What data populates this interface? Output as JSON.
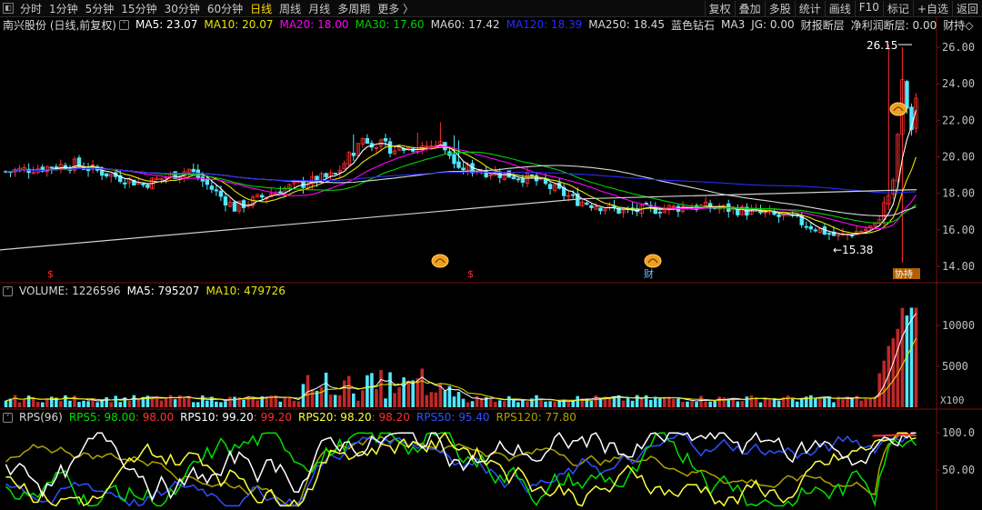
{
  "toolbar": {
    "tabs": [
      {
        "label": "分时",
        "active": false
      },
      {
        "label": "1分钟",
        "active": false
      },
      {
        "label": "5分钟",
        "active": false
      },
      {
        "label": "15分钟",
        "active": false
      },
      {
        "label": "30分钟",
        "active": false
      },
      {
        "label": "60分钟",
        "active": false
      },
      {
        "label": "日线",
        "active": true
      },
      {
        "label": "周线",
        "active": false
      },
      {
        "label": "月线",
        "active": false
      },
      {
        "label": "多周期",
        "active": false
      },
      {
        "label": "更多 〉",
        "active": false
      }
    ],
    "right_tabs": [
      "复权",
      "叠加",
      "多股",
      "统计",
      "画线",
      "F10",
      "标记",
      "+自选",
      "返回"
    ]
  },
  "kline": {
    "legend": {
      "stock": "南兴股份 (日线,前复权)",
      "ma5": "MA5: 23.07",
      "ma10": "MA10: 20.07",
      "ma20": "MA20: 18.00",
      "ma30": "MA30: 17.60",
      "ma60": "MA60: 17.42",
      "ma120": "MA120: 18.39",
      "ma250": "MA250: 18.45",
      "blue_diamond": "蓝色钻石",
      "ma3": "MA3",
      "jg": "JG: 0.00",
      "report": "财报断层",
      "profit": "净利润断层: 0.00",
      "tail": "财持◇"
    },
    "colors": {
      "ma5": "#ffffff",
      "ma10": "#e8e800",
      "ma20": "#ff00ff",
      "ma30": "#00d000",
      "ma60": "#d8d8d8",
      "ma120": "#2a2aff",
      "ma250": "#d0d0d0",
      "up": "#ff3030",
      "down": "#50e8ff"
    },
    "y_ticks": [
      "26.00",
      "24.00",
      "22.00",
      "20.00",
      "18.00",
      "16.00",
      "14.00"
    ],
    "y_range": [
      13.3,
      26.8
    ],
    "high_label": "26.15",
    "low_label": "←15.38",
    "markers": {
      "s1": "$",
      "s2": "$",
      "cai": "财",
      "tags": "协",
      "tags2": "持"
    }
  },
  "volume": {
    "legend": {
      "title": "VOLUME: 1226596",
      "ma5": "MA5: 795207",
      "ma10": "MA10: 479726"
    },
    "y_ticks": [
      "10000",
      "5000"
    ],
    "unit": "X100"
  },
  "rps": {
    "legend": {
      "title": "RPS(96)",
      "rps5": "RPS5: 98.00",
      "rps5b": ": 98.00",
      "rps10": "RPS10: 99.20",
      "rps10b": ": 99.20",
      "rps20": "RPS20: 98.20",
      "rps20b": ": 98.20",
      "rps50": "RPS50: 95.40",
      "rps120": "RPS120: 77.80"
    },
    "y_ticks": [
      "100.0",
      "50.00"
    ]
  }
}
